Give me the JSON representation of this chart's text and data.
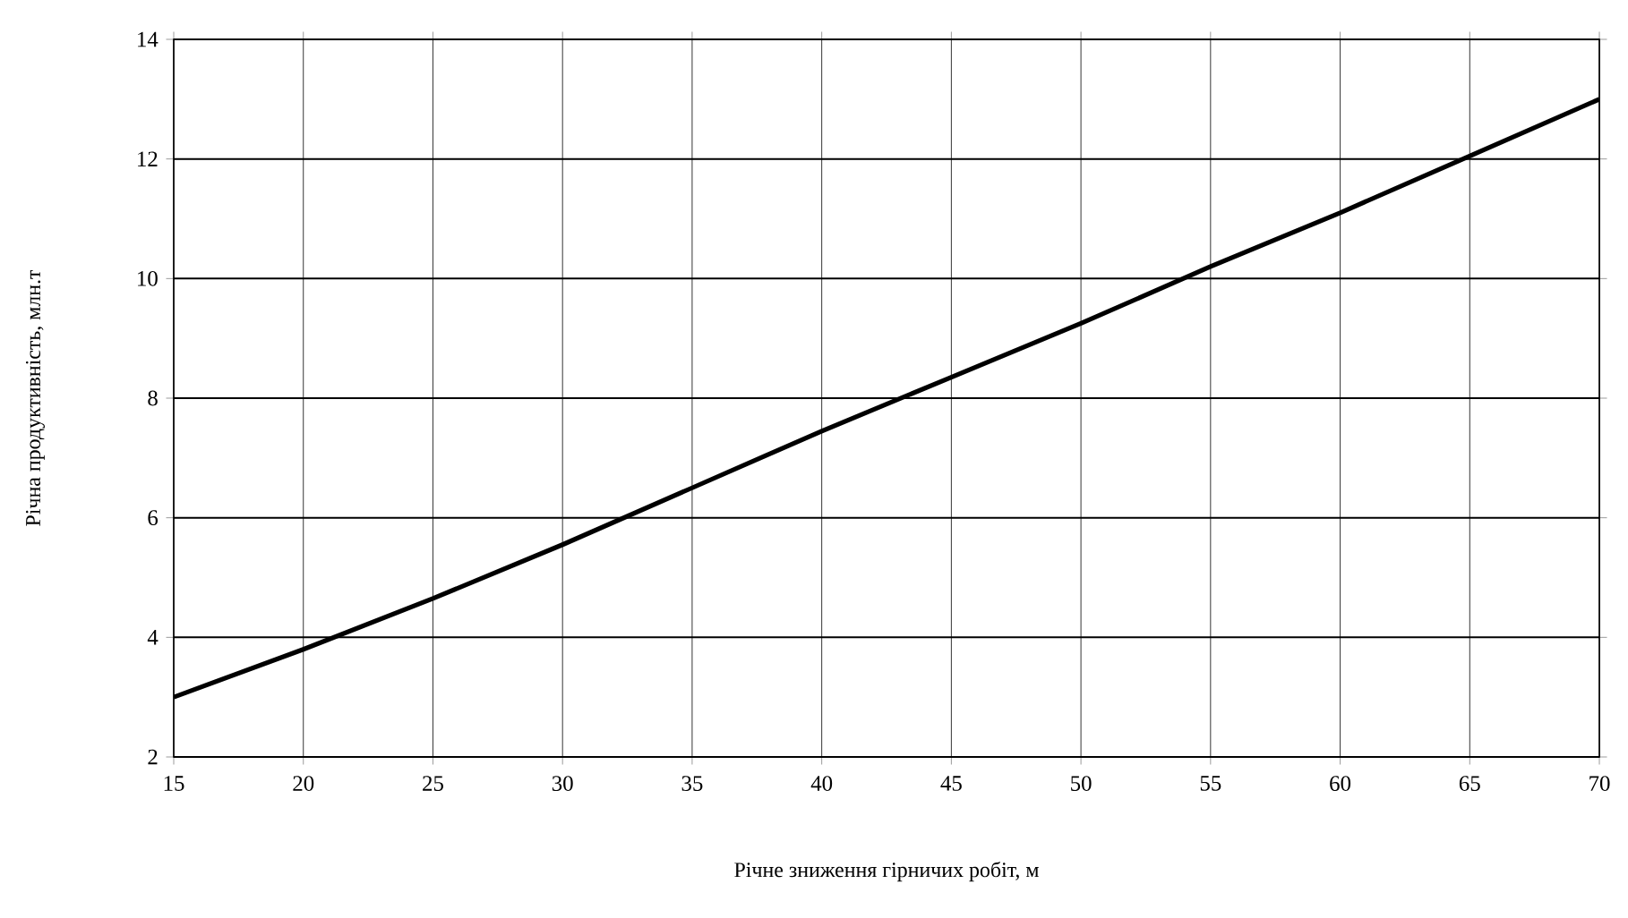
{
  "chart_data": {
    "type": "line",
    "xlabel": "Річне зниження гірничих робіт, м",
    "ylabel": "Річна продуктивність, млн.т",
    "x": [
      15,
      20,
      25,
      30,
      35,
      40,
      45,
      50,
      55,
      60,
      65,
      70
    ],
    "series": [
      {
        "color": "#000000",
        "values": [
          3,
          3.8,
          4.65,
          5.55,
          6.5,
          7.45,
          8.35,
          9.25,
          10.2,
          11.1,
          12.05,
          13
        ]
      }
    ],
    "xlim": [
      15,
      70
    ],
    "ylim": [
      2,
      14
    ],
    "xticks": [
      15,
      20,
      25,
      30,
      35,
      40,
      45,
      50,
      55,
      60,
      65,
      70
    ],
    "yticks": [
      2,
      4,
      6,
      8,
      10,
      12,
      14
    ],
    "grid": true,
    "marker": "none",
    "line_style": "solid"
  }
}
